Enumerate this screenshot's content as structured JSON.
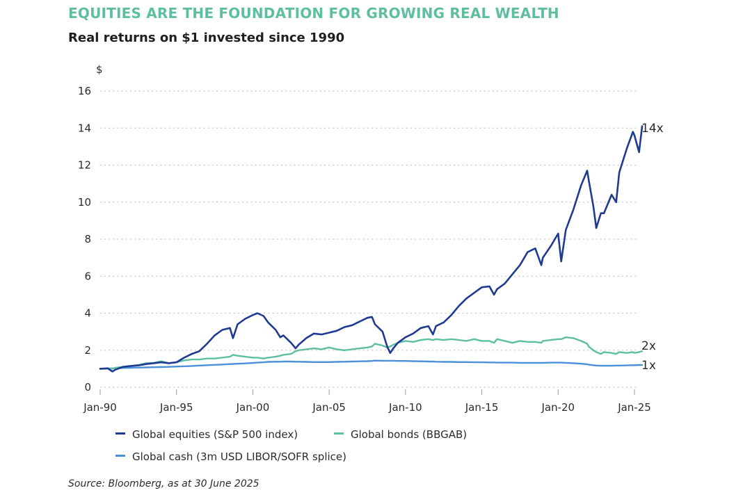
{
  "header": {
    "title": "EQUITIES ARE THE FOUNDATION FOR GROWING REAL WEALTH",
    "subtitle": "Real returns on $1 invested since 1990"
  },
  "colors": {
    "title": "#5dbfa0",
    "equities": "#1f3a93",
    "bonds": "#5dbfa0",
    "cash": "#4a90d9",
    "grid": "#c8c8c8"
  },
  "source": "Source: Bloomberg, as at 30 June 2025",
  "chart_data": {
    "type": "line",
    "title": "Real returns on $1 invested since 1990",
    "xlabel": "",
    "ylabel": "$",
    "ylim": [
      0,
      16
    ],
    "xlim": [
      1990.0,
      2025.5
    ],
    "yticks": [
      0,
      2,
      4,
      6,
      8,
      10,
      12,
      14,
      16
    ],
    "ytick_labels": [
      "0",
      "2",
      "4",
      "6",
      "8",
      "10",
      "12",
      "14",
      "16"
    ],
    "xticks": [
      1990,
      1995,
      2000,
      2005,
      2010,
      2015,
      2020,
      2025
    ],
    "xtick_labels": [
      "Jan-90",
      "Jan-95",
      "Jan-00",
      "Jan-05",
      "Jan-10",
      "Jan-15",
      "Jan-20",
      "Jan-25"
    ],
    "grid": "horizontal-dotted",
    "legend_position": "bottom",
    "x": [
      1990.0,
      1990.5,
      1990.8,
      1991.0,
      1991.5,
      1992.0,
      1992.5,
      1993.0,
      1993.5,
      1994.0,
      1994.5,
      1995.0,
      1995.5,
      1996.0,
      1996.5,
      1997.0,
      1997.5,
      1998.0,
      1998.5,
      1998.7,
      1999.0,
      1999.5,
      2000.0,
      2000.3,
      2000.7,
      2001.0,
      2001.5,
      2001.8,
      2002.0,
      2002.5,
      2002.8,
      2003.0,
      2003.5,
      2004.0,
      2004.5,
      2005.0,
      2005.5,
      2006.0,
      2006.5,
      2007.0,
      2007.5,
      2007.8,
      2008.0,
      2008.5,
      2008.8,
      2009.0,
      2009.2,
      2009.5,
      2010.0,
      2010.5,
      2011.0,
      2011.5,
      2011.8,
      2012.0,
      2012.5,
      2013.0,
      2013.5,
      2014.0,
      2014.5,
      2015.0,
      2015.5,
      2015.8,
      2016.0,
      2016.5,
      2017.0,
      2017.5,
      2018.0,
      2018.5,
      2018.9,
      2019.0,
      2019.5,
      2020.0,
      2020.2,
      2020.5,
      2021.0,
      2021.5,
      2021.9,
      2022.0,
      2022.3,
      2022.5,
      2022.8,
      2023.0,
      2023.5,
      2023.8,
      2024.0,
      2024.5,
      2024.9,
      2025.0,
      2025.3,
      2025.5
    ],
    "series": [
      {
        "name": "Global equities (S&P 500 index)",
        "end_label": "14x",
        "values": [
          1.0,
          1.02,
          0.85,
          0.95,
          1.1,
          1.15,
          1.18,
          1.25,
          1.3,
          1.35,
          1.3,
          1.35,
          1.6,
          1.8,
          1.95,
          2.35,
          2.8,
          3.1,
          3.2,
          2.65,
          3.4,
          3.7,
          3.9,
          4.0,
          3.85,
          3.5,
          3.1,
          2.7,
          2.8,
          2.4,
          2.1,
          2.3,
          2.65,
          2.9,
          2.85,
          2.95,
          3.05,
          3.25,
          3.35,
          3.55,
          3.75,
          3.8,
          3.4,
          3.0,
          2.2,
          1.85,
          2.1,
          2.4,
          2.7,
          2.9,
          3.2,
          3.3,
          2.85,
          3.3,
          3.5,
          3.9,
          4.4,
          4.8,
          5.1,
          5.4,
          5.45,
          5.0,
          5.3,
          5.6,
          6.1,
          6.6,
          7.3,
          7.5,
          6.6,
          7.0,
          7.6,
          8.3,
          6.8,
          8.5,
          9.6,
          10.9,
          11.7,
          11.2,
          9.8,
          8.6,
          9.4,
          9.4,
          10.4,
          10.0,
          11.6,
          12.9,
          13.8,
          13.6,
          12.7,
          14.1
        ]
      },
      {
        "name": "Global bonds (BBGAB)",
        "end_label": "2x",
        "values": [
          1.0,
          1.02,
          1.0,
          1.05,
          1.1,
          1.15,
          1.2,
          1.3,
          1.32,
          1.4,
          1.3,
          1.35,
          1.45,
          1.5,
          1.5,
          1.55,
          1.55,
          1.6,
          1.65,
          1.75,
          1.7,
          1.65,
          1.6,
          1.6,
          1.55,
          1.6,
          1.65,
          1.7,
          1.75,
          1.8,
          1.95,
          2.0,
          2.05,
          2.1,
          2.05,
          2.15,
          2.05,
          2.0,
          2.05,
          2.1,
          2.15,
          2.2,
          2.35,
          2.25,
          2.15,
          2.2,
          2.3,
          2.4,
          2.5,
          2.45,
          2.55,
          2.6,
          2.55,
          2.6,
          2.55,
          2.6,
          2.55,
          2.5,
          2.6,
          2.5,
          2.5,
          2.4,
          2.6,
          2.5,
          2.4,
          2.5,
          2.45,
          2.45,
          2.4,
          2.5,
          2.55,
          2.6,
          2.6,
          2.7,
          2.65,
          2.5,
          2.35,
          2.2,
          2.0,
          1.9,
          1.8,
          1.9,
          1.85,
          1.8,
          1.9,
          1.85,
          1.9,
          1.85,
          1.9,
          1.95
        ]
      },
      {
        "name": "Global cash (3m USD LIBOR/SOFR splice)",
        "end_label": "1x",
        "values": [
          1.0,
          1.01,
          1.02,
          1.03,
          1.04,
          1.05,
          1.06,
          1.07,
          1.08,
          1.09,
          1.1,
          1.12,
          1.13,
          1.15,
          1.17,
          1.19,
          1.21,
          1.23,
          1.25,
          1.26,
          1.27,
          1.29,
          1.31,
          1.33,
          1.35,
          1.37,
          1.38,
          1.38,
          1.39,
          1.39,
          1.38,
          1.38,
          1.37,
          1.36,
          1.36,
          1.36,
          1.37,
          1.38,
          1.39,
          1.4,
          1.41,
          1.42,
          1.44,
          1.43,
          1.43,
          1.43,
          1.43,
          1.42,
          1.42,
          1.41,
          1.4,
          1.39,
          1.39,
          1.38,
          1.37,
          1.37,
          1.36,
          1.36,
          1.35,
          1.35,
          1.34,
          1.34,
          1.33,
          1.33,
          1.33,
          1.32,
          1.32,
          1.32,
          1.32,
          1.32,
          1.33,
          1.33,
          1.33,
          1.32,
          1.3,
          1.27,
          1.24,
          1.22,
          1.19,
          1.17,
          1.16,
          1.16,
          1.16,
          1.17,
          1.17,
          1.18,
          1.19,
          1.19,
          1.2,
          1.2
        ]
      }
    ]
  },
  "legend": {
    "items": [
      {
        "label": "Global equities (S&P 500 index)",
        "color": "#1f3a93"
      },
      {
        "label": "Global bonds (BBGAB)",
        "color": "#5dbfa0"
      },
      {
        "label": "Global cash (3m USD LIBOR/SOFR splice)",
        "color": "#4a90d9"
      }
    ]
  }
}
